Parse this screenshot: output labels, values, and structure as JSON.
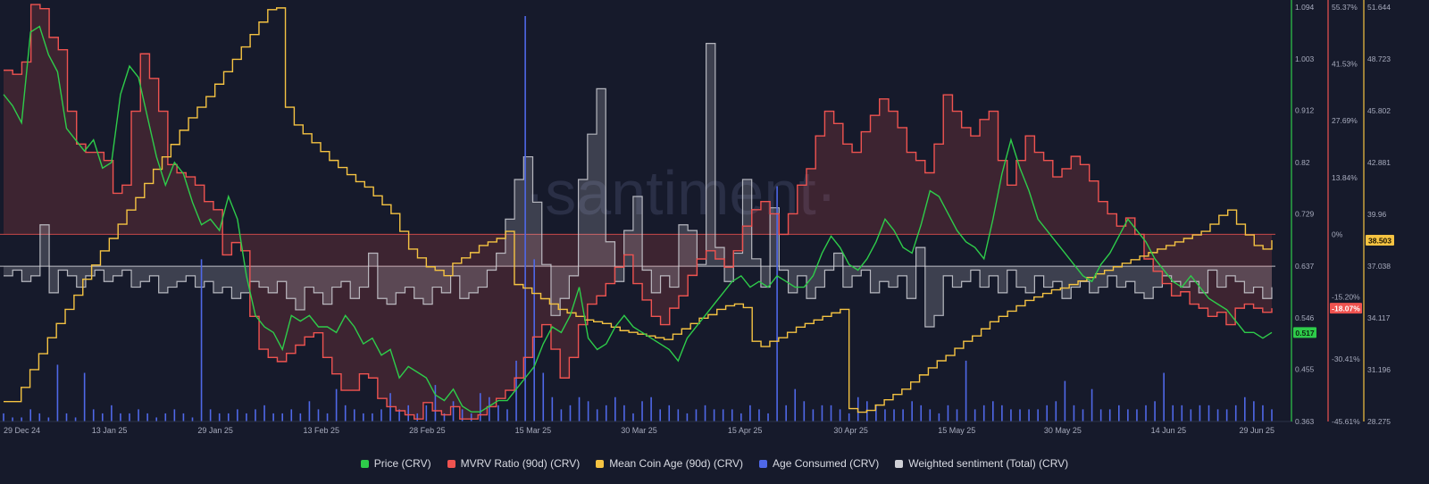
{
  "chart_data": {
    "type": "line",
    "watermark": "·santiment·",
    "x_ticks": [
      "29 Dec 24",
      "13 Jan 25",
      "29 Jan 25",
      "13 Feb 25",
      "28 Feb 25",
      "15 Mar 25",
      "30 Mar 25",
      "15 Apr 25",
      "30 Apr 25",
      "15 May 25",
      "30 May 25",
      "14 Jun 25",
      "29 Jun 25"
    ],
    "axes": {
      "price": {
        "ticks": [
          "1.094",
          "1.003",
          "0.912",
          "0.82",
          "0.729",
          "0.637",
          "0.546",
          "0.455",
          "0.363"
        ],
        "range": [
          0.363,
          1.094
        ],
        "color": "#2ecc4a",
        "current": "0.517"
      },
      "mvrv": {
        "ticks": [
          "55.37%",
          "41.53%",
          "27.69%",
          "13.84%",
          "0%",
          "-15.20%",
          "-30.41%",
          "-45.61%"
        ],
        "values": [
          55.37,
          41.53,
          27.69,
          13.84,
          0,
          -15.2,
          -30.41,
          -45.61
        ],
        "color": "#ef5350",
        "current": "-18.07%"
      },
      "coin_age": {
        "ticks": [
          "51.644",
          "48.723",
          "45.802",
          "42.881",
          "39.96",
          "37.038",
          "34.117",
          "31.196",
          "28.275"
        ],
        "range": [
          28.275,
          51.644
        ],
        "color": "#f5c342",
        "current": "38.503"
      }
    },
    "series": [
      {
        "name": "Price (CRV)",
        "color": "#2ecc4a",
        "values": [
          0.94,
          0.92,
          0.89,
          1.05,
          1.06,
          1.01,
          0.98,
          0.88,
          0.86,
          0.84,
          0.86,
          0.81,
          0.82,
          0.94,
          0.99,
          0.97,
          0.9,
          0.83,
          0.78,
          0.82,
          0.8,
          0.75,
          0.71,
          0.72,
          0.7,
          0.76,
          0.72,
          0.62,
          0.55,
          0.53,
          0.52,
          0.49,
          0.55,
          0.54,
          0.55,
          0.53,
          0.53,
          0.52,
          0.55,
          0.53,
          0.5,
          0.51,
          0.48,
          0.49,
          0.44,
          0.46,
          0.45,
          0.44,
          0.41,
          0.4,
          0.42,
          0.39,
          0.38,
          0.38,
          0.39,
          0.4,
          0.4,
          0.42,
          0.44,
          0.46,
          0.5,
          0.53,
          0.52,
          0.55,
          0.6,
          0.51,
          0.49,
          0.5,
          0.53,
          0.55,
          0.53,
          0.52,
          0.51,
          0.5,
          0.49,
          0.47,
          0.51,
          0.53,
          0.55,
          0.57,
          0.59,
          0.61,
          0.62,
          0.6,
          0.61,
          0.6,
          0.62,
          0.61,
          0.6,
          0.6,
          0.62,
          0.66,
          0.69,
          0.67,
          0.64,
          0.63,
          0.65,
          0.68,
          0.72,
          0.7,
          0.67,
          0.66,
          0.71,
          0.77,
          0.76,
          0.73,
          0.7,
          0.68,
          0.67,
          0.65,
          0.72,
          0.8,
          0.86,
          0.81,
          0.77,
          0.72,
          0.7,
          0.68,
          0.66,
          0.64,
          0.62,
          0.61,
          0.64,
          0.66,
          0.69,
          0.72,
          0.7,
          0.68,
          0.65,
          0.63,
          0.61,
          0.6,
          0.62,
          0.6,
          0.58,
          0.57,
          0.56,
          0.54,
          0.52,
          0.52,
          0.51,
          0.52
        ]
      },
      {
        "name": "MVRV Ratio (90d) (CRV)",
        "color": "#ef5350",
        "values": [
          40,
          39,
          42,
          56,
          55,
          48,
          45,
          30,
          22,
          20,
          20,
          18,
          10,
          12,
          30,
          44,
          38,
          30,
          17,
          15,
          14,
          12,
          8,
          6,
          -5,
          -2,
          -4,
          -20,
          -28,
          -30,
          -31,
          -29,
          -27,
          -25,
          -24,
          -30,
          -34,
          -38,
          -38,
          -34,
          -35,
          -40,
          -42,
          -43,
          -44,
          -45,
          -41,
          -43,
          -44,
          -42,
          -45,
          -45,
          -44,
          -42,
          -40,
          -38,
          -35,
          -30,
          -25,
          -22,
          -28,
          -35,
          -30,
          -22,
          -17,
          -15,
          -12,
          -8,
          -5,
          -12,
          -16,
          -20,
          -22,
          -18,
          -15,
          -10,
          -6,
          -4,
          -6,
          -8,
          -4,
          2,
          6,
          8,
          5,
          0,
          5,
          12,
          16,
          24,
          30,
          27,
          22,
          20,
          25,
          29,
          33,
          30,
          26,
          20,
          18,
          15,
          22,
          34,
          30,
          26,
          24,
          28,
          30,
          18,
          12,
          18,
          24,
          20,
          18,
          14,
          16,
          19,
          17,
          13,
          8,
          5,
          2,
          4,
          0,
          -6,
          -9,
          -12,
          -15,
          -14,
          -17,
          -18,
          -20,
          -19,
          -22,
          -18,
          -17,
          -18,
          -19,
          -18
        ]
      },
      {
        "name": "Mean Coin Age (90d) (CRV)",
        "color": "#f5c342",
        "values": [
          29.4,
          29.4,
          30.2,
          31.2,
          32.1,
          33.0,
          33.8,
          34.6,
          35.4,
          36.3,
          37.1,
          37.9,
          38.6,
          39.4,
          40.2,
          40.9,
          41.7,
          42.5,
          43.2,
          43.9,
          44.7,
          45.4,
          46.0,
          46.6,
          47.3,
          48.0,
          48.7,
          49.4,
          50.1,
          50.8,
          51.5,
          51.6,
          46.0,
          45.0,
          44.5,
          44.0,
          43.5,
          43.0,
          42.6,
          42.2,
          41.8,
          41.5,
          41.0,
          40.5,
          40.0,
          39.0,
          38.0,
          37.5,
          37.0,
          36.8,
          36.5,
          37.2,
          37.5,
          37.8,
          38.2,
          38.4,
          38.6,
          39.0,
          36.0,
          35.8,
          35.5,
          35.2,
          34.9,
          34.6,
          34.4,
          34.2,
          34.0,
          33.9,
          33.8,
          33.6,
          33.4,
          33.3,
          33.2,
          33.1,
          33.0,
          32.9,
          33.2,
          33.5,
          33.8,
          34.1,
          34.3,
          34.6,
          34.8,
          34.9,
          34.7,
          32.8,
          32.5,
          32.8,
          33.0,
          33.3,
          33.6,
          33.8,
          34.0,
          34.2,
          34.4,
          34.6,
          29.0,
          28.8,
          28.9,
          29.2,
          29.5,
          29.8,
          30.1,
          30.5,
          30.9,
          31.3,
          31.7,
          32.0,
          32.4,
          32.8,
          33.1,
          33.5,
          33.9,
          34.2,
          34.5,
          34.8,
          35.1,
          35.3,
          35.5,
          35.7,
          35.8,
          36.0,
          36.2,
          36.4,
          36.6,
          36.8,
          37.0,
          37.2,
          37.4,
          37.6,
          37.8,
          38.0,
          38.2,
          38.4,
          38.6,
          38.8,
          39.0,
          39.4,
          39.9,
          40.2,
          39.4,
          38.8,
          38.2,
          38.0,
          38.5
        ]
      },
      {
        "name": "Age Consumed (CRV)",
        "color": "#4f68e8",
        "values": [
          2,
          1,
          1,
          3,
          2,
          1,
          14,
          2,
          1,
          12,
          3,
          2,
          4,
          2,
          2,
          3,
          2,
          1,
          2,
          3,
          2,
          1,
          40,
          3,
          2,
          2,
          3,
          2,
          3,
          4,
          2,
          2,
          3,
          2,
          5,
          3,
          2,
          8,
          4,
          3,
          2,
          2,
          3,
          7,
          3,
          4,
          2,
          4,
          9,
          2,
          5,
          3,
          2,
          7,
          6,
          4,
          3,
          15,
          100,
          40,
          12,
          6,
          3,
          4,
          6,
          5,
          3,
          4,
          6,
          4,
          2,
          5,
          6,
          3,
          4,
          3,
          2,
          3,
          4,
          3,
          3,
          3,
          2,
          4,
          3,
          2,
          58,
          4,
          8,
          5,
          3,
          4,
          4,
          3,
          2,
          6,
          5,
          4,
          3,
          3,
          3,
          5,
          4,
          3,
          2,
          4,
          3,
          15,
          3,
          4,
          5,
          4,
          3,
          3,
          3,
          3,
          4,
          5,
          10,
          4,
          3,
          8,
          3,
          3,
          4,
          3,
          3,
          4,
          5,
          12,
          4,
          4,
          3,
          4,
          4,
          3,
          3,
          4,
          6,
          5,
          4,
          3
        ]
      },
      {
        "name": "Weighted sentiment (Total) (CRV)",
        "color": "#cfd0d6",
        "values": [
          0.62,
          0.63,
          0.61,
          0.62,
          0.71,
          0.59,
          0.63,
          0.62,
          0.6,
          0.62,
          0.63,
          0.61,
          0.62,
          0.63,
          0.6,
          0.61,
          0.62,
          0.59,
          0.6,
          0.61,
          0.62,
          0.6,
          0.61,
          0.59,
          0.6,
          0.58,
          0.59,
          0.61,
          0.6,
          0.59,
          0.61,
          0.58,
          0.56,
          0.6,
          0.59,
          0.57,
          0.6,
          0.61,
          0.58,
          0.6,
          0.66,
          0.58,
          0.57,
          0.59,
          0.6,
          0.58,
          0.57,
          0.6,
          0.59,
          0.62,
          0.58,
          0.59,
          0.6,
          0.63,
          0.66,
          0.72,
          0.79,
          0.83,
          0.75,
          0.64,
          0.55,
          0.58,
          0.62,
          0.79,
          0.87,
          0.95,
          0.68,
          0.61,
          0.7,
          0.76,
          0.63,
          0.59,
          0.62,
          0.6,
          0.71,
          0.7,
          0.64,
          1.03,
          0.67,
          0.61,
          0.66,
          0.79,
          0.65,
          0.6,
          0.74,
          0.63,
          0.59,
          0.62,
          0.58,
          0.6,
          0.63,
          0.66,
          0.6,
          0.62,
          0.63,
          0.59,
          0.61,
          0.6,
          0.62,
          0.58,
          0.67,
          0.53,
          0.55,
          0.62,
          0.6,
          0.61,
          0.63,
          0.6,
          0.62,
          0.59,
          0.63,
          0.6,
          0.59,
          0.62,
          0.6,
          0.61,
          0.58,
          0.6,
          0.61,
          0.59,
          0.6,
          0.62,
          0.6,
          0.61,
          0.59,
          0.58,
          0.6,
          0.62,
          0.61,
          0.6,
          0.61,
          0.59,
          0.63,
          0.6,
          0.62,
          0.61,
          0.59,
          0.6,
          0.58,
          0.6
        ]
      }
    ]
  },
  "legend": [
    {
      "label": "Price (CRV)",
      "color": "#2ecc4a"
    },
    {
      "label": "MVRV Ratio (90d) (CRV)",
      "color": "#ef5350"
    },
    {
      "label": "Mean Coin Age (90d) (CRV)",
      "color": "#f5c342"
    },
    {
      "label": "Age Consumed (CRV)",
      "color": "#4f68e8"
    },
    {
      "label": "Weighted sentiment (Total) (CRV)",
      "color": "#cfd0d6"
    }
  ]
}
